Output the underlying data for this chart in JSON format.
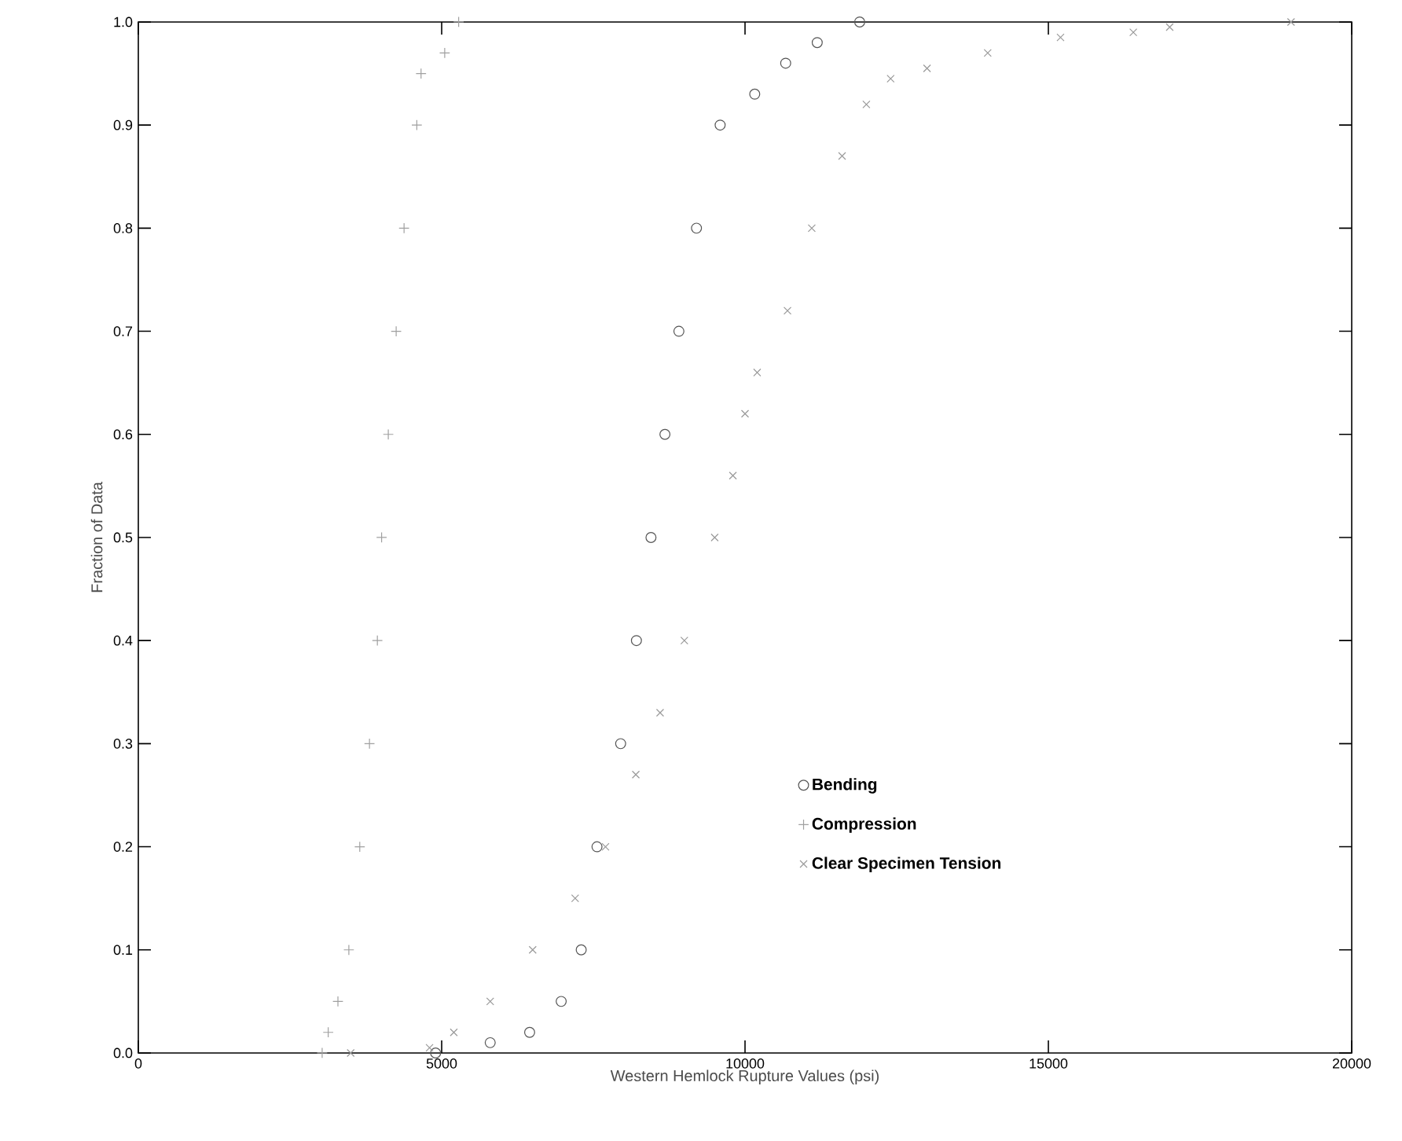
{
  "chart_data": {
    "type": "scatter",
    "xlabel": "Western Hemlock Rupture Values (psi)",
    "ylabel": "Fraction of Data",
    "xlim": [
      0,
      20000
    ],
    "xticks": [
      0,
      5000,
      10000,
      15000,
      20000
    ],
    "ylim": [
      0,
      1
    ],
    "yticks": [
      {
        "value": 0,
        "label": "0.0"
      },
      {
        "value": 0.1,
        "label": "0.1"
      },
      {
        "value": 0.2,
        "label": "0.2"
      },
      {
        "value": 0.3,
        "label": "0.3"
      },
      {
        "value": 0.4,
        "label": "0.4"
      },
      {
        "value": 0.5,
        "label": "0.5"
      },
      {
        "value": 0.6,
        "label": "0.6"
      },
      {
        "value": 0.7,
        "label": "0.7"
      },
      {
        "value": 0.8,
        "label": "0.8"
      },
      {
        "value": 0.9,
        "label": "0.9"
      },
      {
        "value": 1,
        "label": "1.0"
      }
    ],
    "legend": "bottom right",
    "series": [
      {
        "name": "Bending",
        "color": "#555555",
        "marker": "circle",
        "x": [
          4900,
          5800,
          6450,
          6970,
          7300,
          7560,
          7950,
          8210,
          8450,
          8680,
          8910,
          9200,
          9590,
          10160,
          10670,
          11190,
          11890
        ],
        "values": [
          0,
          0.01,
          0.02,
          0.05,
          0.1,
          0.2,
          0.3,
          0.4,
          0.5,
          0.6,
          0.7,
          0.8,
          0.9,
          0.93,
          0.96,
          0.98,
          1
        ]
      },
      {
        "name": "Compression",
        "color": "#a0a0a0",
        "marker": "plus",
        "x": [
          3030,
          3130,
          3290,
          3470,
          3650,
          3810,
          3940,
          4010,
          4120,
          4250,
          4380,
          4590,
          4660,
          5050,
          5280
        ],
        "values": [
          0,
          0.02,
          0.05,
          0.1,
          0.2,
          0.3,
          0.4,
          0.5,
          0.6,
          0.7,
          0.8,
          0.9,
          0.95,
          0.97,
          1
        ]
      },
      {
        "name": "Clear Specimen Tension",
        "color": "#999999",
        "marker": "cross",
        "x": [
          3500,
          4800,
          5200,
          5800,
          6500,
          7200,
          7700,
          8200,
          8600,
          9000,
          9500,
          9800,
          10000,
          10200,
          10700,
          11100,
          11600,
          12000,
          12400,
          13000,
          14000,
          15200,
          16400,
          17000,
          19000
        ],
        "values": [
          0,
          0.005,
          0.02,
          0.05,
          0.1,
          0.15,
          0.2,
          0.27,
          0.33,
          0.4,
          0.5,
          0.56,
          0.62,
          0.66,
          0.72,
          0.8,
          0.87,
          0.92,
          0.945,
          0.955,
          0.97,
          0.985,
          0.99,
          0.995,
          1
        ]
      }
    ]
  }
}
